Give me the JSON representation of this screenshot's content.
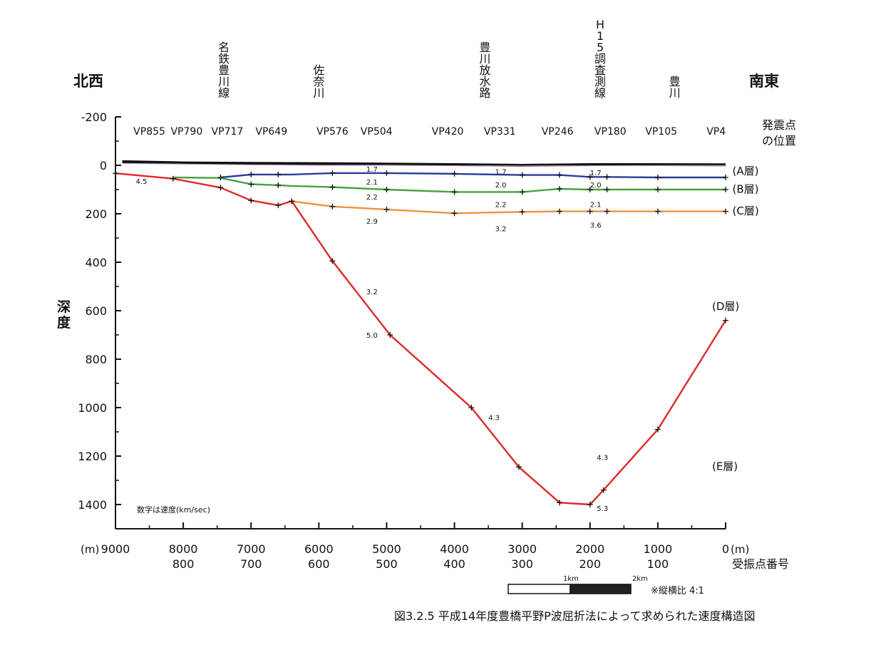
{
  "chart_data": {
    "type": "line",
    "caption": "図3.2.5 平成14年度豊橋平野P波屈折法によって求められた速度構造図",
    "direction_left": "北西",
    "direction_right": "南東",
    "ylabel": "深度",
    "x_unit_left": "(m)",
    "x_unit_right": "(m)",
    "receiver_label": "受振点番号",
    "shot_label_line1": "発震点",
    "shot_label_line2": "の位置",
    "velocity_note": "数字は速度(km/sec)",
    "aspect_note": "※縦横比 4:1",
    "scale_bar_labels": [
      "1km",
      "2km"
    ],
    "xlim": [
      9000,
      0
    ],
    "ylim": [
      -200,
      1500
    ],
    "y_ticks": [
      -200,
      0,
      200,
      400,
      600,
      800,
      1000,
      1200,
      1400
    ],
    "x_ticks": [
      {
        "value": 9000,
        "label": "9000"
      },
      {
        "value": 8000,
        "label": "8000"
      },
      {
        "value": 7000,
        "label": "7000"
      },
      {
        "value": 6000,
        "label": "6000"
      },
      {
        "value": 5000,
        "label": "5000"
      },
      {
        "value": 4000,
        "label": "4000"
      },
      {
        "value": 3000,
        "label": "3000"
      },
      {
        "value": 2000,
        "label": "2000"
      },
      {
        "value": 1000,
        "label": "1000"
      },
      {
        "value": 0,
        "label": "0"
      }
    ],
    "receiver_ticks": [
      {
        "x": 8000,
        "label": "800"
      },
      {
        "x": 7000,
        "label": "700"
      },
      {
        "x": 6000,
        "label": "600"
      },
      {
        "x": 5000,
        "label": "500"
      },
      {
        "x": 4000,
        "label": "400"
      },
      {
        "x": 3000,
        "label": "300"
      },
      {
        "x": 2000,
        "label": "200"
      },
      {
        "x": 1000,
        "label": "100"
      }
    ],
    "landmarks": [
      {
        "x": 7400,
        "label": "名鉄豊川線"
      },
      {
        "x": 6000,
        "label": "佐奈川"
      },
      {
        "x": 3550,
        "label": "豊川放水路"
      },
      {
        "x": 1850,
        "label": "H15調査測線"
      },
      {
        "x": 750,
        "label": "豊川"
      }
    ],
    "shot_points": [
      {
        "x": 8500,
        "label": "VP855"
      },
      {
        "x": 7950,
        "label": "VP790"
      },
      {
        "x": 7350,
        "label": "VP717"
      },
      {
        "x": 6700,
        "label": "VP649"
      },
      {
        "x": 5800,
        "label": "VP576"
      },
      {
        "x": 5150,
        "label": "VP504"
      },
      {
        "x": 4100,
        "label": "VP420"
      },
      {
        "x": 3330,
        "label": "VP331"
      },
      {
        "x": 2480,
        "label": "VP246"
      },
      {
        "x": 1700,
        "label": "VP180"
      },
      {
        "x": 950,
        "label": "VP105"
      },
      {
        "x": 140,
        "label": "VP4"
      }
    ],
    "layer_labels": [
      {
        "x": -100,
        "y": 20,
        "label": "(A層)"
      },
      {
        "x": -100,
        "y": 95,
        "label": "(B層)"
      },
      {
        "x": -100,
        "y": 185,
        "label": "(C層)"
      },
      {
        "x": 200,
        "y": 580,
        "label": "(D層)"
      },
      {
        "x": 200,
        "y": 1240,
        "label": "(E層)"
      }
    ],
    "velocity_labels": [
      {
        "x": 8700,
        "y": 65,
        "label": "4.5"
      },
      {
        "x": 5300,
        "y": 15,
        "label": "1.7"
      },
      {
        "x": 5300,
        "y": 68,
        "label": "2.1"
      },
      {
        "x": 5300,
        "y": 130,
        "label": "2.2"
      },
      {
        "x": 5300,
        "y": 230,
        "label": "2.9"
      },
      {
        "x": 3400,
        "y": 25,
        "label": "1.7"
      },
      {
        "x": 3400,
        "y": 80,
        "label": "2.0"
      },
      {
        "x": 3400,
        "y": 160,
        "label": "2.2"
      },
      {
        "x": 3400,
        "y": 260,
        "label": "3.2"
      },
      {
        "x": 2000,
        "y": 30,
        "label": "1.7"
      },
      {
        "x": 2000,
        "y": 80,
        "label": "2.0"
      },
      {
        "x": 2000,
        "y": 160,
        "label": "2.1"
      },
      {
        "x": 2000,
        "y": 245,
        "label": "3.6"
      },
      {
        "x": 5300,
        "y": 520,
        "label": "3.2"
      },
      {
        "x": 5300,
        "y": 700,
        "label": "5.0"
      },
      {
        "x": 3500,
        "y": 1040,
        "label": "4.3"
      },
      {
        "x": 1900,
        "y": 1205,
        "label": "4.3"
      },
      {
        "x": 1900,
        "y": 1415,
        "label": "5.3"
      }
    ],
    "series": [
      {
        "color": "#111111",
        "points": [
          [
            8900,
            -15
          ],
          [
            8000,
            -10
          ],
          [
            7000,
            -8
          ],
          [
            6000,
            -7
          ],
          [
            5000,
            -5
          ],
          [
            4000,
            -3
          ],
          [
            3000,
            0
          ],
          [
            2000,
            -3
          ],
          [
            1000,
            -3
          ],
          [
            0,
            -2
          ]
        ]
      },
      {
        "color": "#c8a0c8",
        "points": [
          [
            8900,
            -8
          ],
          [
            8000,
            -5
          ],
          [
            7000,
            -2
          ],
          [
            6000,
            0
          ],
          [
            5000,
            0
          ],
          [
            4000,
            2
          ],
          [
            3000,
            3
          ],
          [
            2000,
            2
          ],
          [
            1000,
            1
          ],
          [
            0,
            1
          ]
        ]
      },
      {
        "color": "#2b3b9c",
        "points": [
          [
            7450,
            50
          ],
          [
            7000,
            38
          ],
          [
            6600,
            38
          ],
          [
            6400,
            38
          ],
          [
            5800,
            32
          ],
          [
            5000,
            32
          ],
          [
            4000,
            35
          ],
          [
            3000,
            40
          ],
          [
            2450,
            40
          ],
          [
            2000,
            48
          ],
          [
            1750,
            48
          ],
          [
            1000,
            50
          ],
          [
            0,
            50
          ]
        ]
      },
      {
        "color": "#4aa040",
        "points": [
          [
            8150,
            50
          ],
          [
            7450,
            52
          ],
          [
            7000,
            78
          ],
          [
            6600,
            82
          ],
          [
            6400,
            85
          ],
          [
            5800,
            90
          ],
          [
            5000,
            100
          ],
          [
            4000,
            110
          ],
          [
            3000,
            110
          ],
          [
            2450,
            97
          ],
          [
            2000,
            100
          ],
          [
            1750,
            100
          ],
          [
            1000,
            100
          ],
          [
            0,
            100
          ]
        ]
      },
      {
        "color": "#f0903c",
        "points": [
          [
            6400,
            148
          ],
          [
            5800,
            170
          ],
          [
            5000,
            182
          ],
          [
            4000,
            198
          ],
          [
            3000,
            192
          ],
          [
            2450,
            190
          ],
          [
            2000,
            190
          ],
          [
            1750,
            190
          ],
          [
            1000,
            190
          ],
          [
            0,
            190
          ]
        ]
      },
      {
        "color": "#e02828",
        "points": [
          [
            9000,
            33
          ],
          [
            8150,
            55
          ],
          [
            7450,
            92
          ],
          [
            7000,
            145
          ],
          [
            6600,
            165
          ],
          [
            6400,
            148
          ],
          [
            5800,
            395
          ],
          [
            4950,
            700
          ],
          [
            3750,
            1000
          ],
          [
            3050,
            1245
          ],
          [
            2450,
            1392
          ],
          [
            2000,
            1400
          ],
          [
            1800,
            1340
          ],
          [
            1000,
            1090
          ],
          [
            0,
            640
          ]
        ]
      }
    ],
    "markers": [
      [
        9000,
        33
      ],
      [
        8150,
        55
      ],
      [
        7450,
        92
      ],
      [
        7000,
        145
      ],
      [
        6600,
        165
      ],
      [
        6400,
        148
      ],
      [
        5800,
        395
      ],
      [
        4950,
        700
      ],
      [
        3750,
        1000
      ],
      [
        3050,
        1245
      ],
      [
        2450,
        1392
      ],
      [
        2000,
        1400
      ],
      [
        1800,
        1340
      ],
      [
        1000,
        1090
      ],
      [
        0,
        640
      ],
      [
        7450,
        50
      ],
      [
        7000,
        38
      ],
      [
        6600,
        38
      ],
      [
        5800,
        32
      ],
      [
        5000,
        32
      ],
      [
        4000,
        35
      ],
      [
        3000,
        40
      ],
      [
        2450,
        40
      ],
      [
        2000,
        48
      ],
      [
        1750,
        48
      ],
      [
        1000,
        50
      ],
      [
        0,
        50
      ],
      [
        7000,
        78
      ],
      [
        6600,
        82
      ],
      [
        5800,
        90
      ],
      [
        5000,
        100
      ],
      [
        4000,
        110
      ],
      [
        3000,
        110
      ],
      [
        2450,
        97
      ],
      [
        2000,
        100
      ],
      [
        1750,
        100
      ],
      [
        1000,
        100
      ],
      [
        0,
        100
      ],
      [
        5800,
        170
      ],
      [
        5000,
        182
      ],
      [
        4000,
        198
      ],
      [
        3000,
        192
      ],
      [
        2450,
        190
      ],
      [
        2000,
        190
      ],
      [
        1750,
        190
      ],
      [
        1000,
        190
      ],
      [
        0,
        190
      ]
    ]
  }
}
